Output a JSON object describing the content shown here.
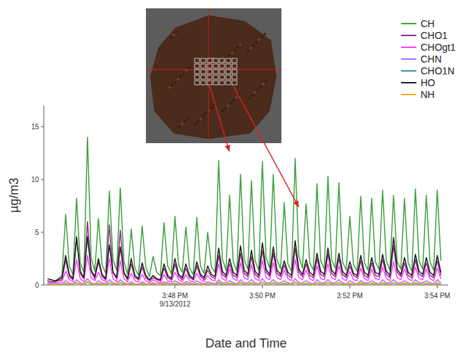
{
  "chart_data": {
    "type": "line",
    "x_label": "Date and Time",
    "y_label": "µg/m3",
    "grid": false,
    "legend": "top right",
    "xlim": [
      "2012-09-13T15:45:00",
      "2012-09-13T15:54:15"
    ],
    "xticks": [
      {
        "value": "2012-09-13T15:48:00",
        "label": "3:48 PM\n9/13/2012"
      },
      {
        "value": "2012-09-13T15:50:00",
        "label": "3:50 PM"
      },
      {
        "value": "2012-09-13T15:52:00",
        "label": "3:52 PM"
      },
      {
        "value": "2012-09-13T15:54:00",
        "label": "3:54 PM"
      }
    ],
    "ylim": [
      0,
      17
    ],
    "yticks": [
      0,
      5,
      10,
      15
    ],
    "x": [
      "2012-09-13T15:45:05",
      "2012-09-13T15:45:10",
      "2012-09-13T15:45:15",
      "2012-09-13T15:45:20",
      "2012-09-13T15:45:25",
      "2012-09-13T15:45:30",
      "2012-09-13T15:45:35",
      "2012-09-13T15:45:40",
      "2012-09-13T15:45:45",
      "2012-09-13T15:45:50",
      "2012-09-13T15:45:55",
      "2012-09-13T15:46:00",
      "2012-09-13T15:46:05",
      "2012-09-13T15:46:10",
      "2012-09-13T15:46:15",
      "2012-09-13T15:46:20",
      "2012-09-13T15:46:25",
      "2012-09-13T15:46:30",
      "2012-09-13T15:46:35",
      "2012-09-13T15:46:40",
      "2012-09-13T15:46:45",
      "2012-09-13T15:46:50",
      "2012-09-13T15:46:55",
      "2012-09-13T15:47:00",
      "2012-09-13T15:47:05",
      "2012-09-13T15:47:10",
      "2012-09-13T15:47:15",
      "2012-09-13T15:47:20",
      "2012-09-13T15:47:25",
      "2012-09-13T15:47:30",
      "2012-09-13T15:47:35",
      "2012-09-13T15:47:40",
      "2012-09-13T15:47:45",
      "2012-09-13T15:47:50",
      "2012-09-13T15:47:55",
      "2012-09-13T15:48:00",
      "2012-09-13T15:48:05",
      "2012-09-13T15:48:10",
      "2012-09-13T15:48:15",
      "2012-09-13T15:48:20",
      "2012-09-13T15:48:25",
      "2012-09-13T15:48:30",
      "2012-09-13T15:48:35",
      "2012-09-13T15:48:40",
      "2012-09-13T15:48:45",
      "2012-09-13T15:48:50",
      "2012-09-13T15:48:55",
      "2012-09-13T15:49:00",
      "2012-09-13T15:49:05",
      "2012-09-13T15:49:10",
      "2012-09-13T15:49:15",
      "2012-09-13T15:49:20",
      "2012-09-13T15:49:25",
      "2012-09-13T15:49:30",
      "2012-09-13T15:49:35",
      "2012-09-13T15:49:40",
      "2012-09-13T15:49:45",
      "2012-09-13T15:49:50",
      "2012-09-13T15:49:55",
      "2012-09-13T15:50:00",
      "2012-09-13T15:50:05",
      "2012-09-13T15:50:10",
      "2012-09-13T15:50:15",
      "2012-09-13T15:50:20",
      "2012-09-13T15:50:25",
      "2012-09-13T15:50:30",
      "2012-09-13T15:50:35",
      "2012-09-13T15:50:40",
      "2012-09-13T15:50:45",
      "2012-09-13T15:50:50",
      "2012-09-13T15:50:55",
      "2012-09-13T15:51:00",
      "2012-09-13T15:51:05",
      "2012-09-13T15:51:10",
      "2012-09-13T15:51:15",
      "2012-09-13T15:51:20",
      "2012-09-13T15:51:25",
      "2012-09-13T15:51:30",
      "2012-09-13T15:51:35",
      "2012-09-13T15:51:40",
      "2012-09-13T15:51:45",
      "2012-09-13T15:51:50",
      "2012-09-13T15:51:55",
      "2012-09-13T15:52:00",
      "2012-09-13T15:52:05",
      "2012-09-13T15:52:10",
      "2012-09-13T15:52:15",
      "2012-09-13T15:52:20",
      "2012-09-13T15:52:25",
      "2012-09-13T15:52:30",
      "2012-09-13T15:52:35",
      "2012-09-13T15:52:40",
      "2012-09-13T15:52:45",
      "2012-09-13T15:52:50",
      "2012-09-13T15:52:55",
      "2012-09-13T15:53:00",
      "2012-09-13T15:53:05",
      "2012-09-13T15:53:10",
      "2012-09-13T15:53:15",
      "2012-09-13T15:53:20",
      "2012-09-13T15:53:25",
      "2012-09-13T15:53:30",
      "2012-09-13T15:53:35",
      "2012-09-13T15:53:40",
      "2012-09-13T15:53:45",
      "2012-09-13T15:53:50",
      "2012-09-13T15:53:55",
      "2012-09-13T15:54:00",
      "2012-09-13T15:54:05"
    ],
    "series": [
      {
        "name": "CH",
        "color": "#3da13d",
        "values": [
          0.4,
          0.3,
          0.3,
          0.6,
          0.9,
          6.7,
          1.8,
          1.0,
          8.2,
          2.1,
          1.2,
          14.0,
          2.6,
          1.3,
          6.3,
          1.9,
          1.1,
          8.9,
          2.4,
          1.4,
          9.2,
          2.2,
          1.0,
          5.3,
          1.6,
          0.9,
          5.6,
          1.7,
          0.8,
          2.7,
          1.2,
          0.9,
          5.9,
          1.8,
          1.1,
          6.5,
          1.9,
          1.2,
          5.5,
          1.6,
          1.0,
          6.4,
          1.8,
          1.1,
          5.0,
          1.7,
          1.2,
          11.8,
          2.5,
          1.4,
          8.5,
          2.2,
          1.3,
          10.5,
          2.4,
          1.5,
          9.9,
          2.3,
          1.4,
          11.7,
          2.6,
          1.6,
          10.5,
          2.4,
          1.5,
          7.8,
          2.0,
          1.3,
          12.0,
          2.7,
          1.6,
          7.7,
          2.1,
          1.4,
          9.6,
          2.3,
          1.5,
          10.3,
          2.4,
          1.6,
          9.7,
          2.2,
          1.4,
          6.5,
          1.9,
          1.3,
          8.4,
          2.1,
          1.4,
          8.2,
          2.2,
          1.5,
          9.0,
          2.3,
          1.4,
          8.5,
          2.2,
          1.5,
          8.2,
          2.1,
          1.3,
          9.1,
          2.3,
          1.5,
          8.5,
          2.2,
          1.4,
          9.0,
          2.3
        ]
      },
      {
        "name": "CHO1",
        "color": "#8e2a84",
        "values": [
          0.4,
          0.3,
          0.3,
          0.4,
          0.5,
          2.4,
          0.8,
          0.5,
          4.6,
          1.1,
          0.6,
          6.0,
          1.3,
          0.6,
          2.2,
          0.8,
          0.5,
          5.7,
          1.2,
          0.6,
          5.2,
          1.1,
          0.5,
          2.0,
          0.7,
          0.5,
          1.7,
          0.7,
          0.4,
          0.7,
          0.5,
          0.4,
          1.6,
          0.7,
          0.5,
          2.0,
          0.8,
          0.5,
          1.6,
          0.7,
          0.5,
          1.8,
          0.8,
          0.5,
          1.4,
          0.8,
          0.6,
          2.8,
          1.0,
          0.7,
          2.0,
          0.9,
          0.7,
          3.0,
          1.1,
          0.8,
          2.7,
          1.0,
          0.7,
          3.3,
          1.2,
          0.8,
          3.0,
          1.1,
          0.8,
          1.9,
          0.9,
          0.7,
          3.5,
          1.2,
          0.8,
          2.0,
          0.9,
          0.7,
          2.5,
          1.0,
          0.8,
          2.9,
          1.1,
          0.8,
          2.5,
          1.0,
          0.7,
          1.8,
          0.9,
          0.7,
          2.3,
          0.9,
          0.7,
          2.1,
          0.9,
          0.8,
          2.4,
          1.0,
          0.7,
          3.7,
          1.2,
          0.8,
          2.1,
          0.9,
          0.7,
          2.4,
          1.0,
          0.8,
          2.1,
          0.9,
          0.7,
          2.3,
          0.9
        ]
      },
      {
        "name": "CHOgt1",
        "color": "#ff3cff",
        "values": [
          0.2,
          0.2,
          0.2,
          0.2,
          0.3,
          1.3,
          0.5,
          0.3,
          2.4,
          0.6,
          0.3,
          2.8,
          0.7,
          0.4,
          1.2,
          0.5,
          0.3,
          2.5,
          0.6,
          0.3,
          2.3,
          0.6,
          0.3,
          1.1,
          0.4,
          0.3,
          1.0,
          0.4,
          0.2,
          0.5,
          0.3,
          0.2,
          1.0,
          0.4,
          0.3,
          1.2,
          0.5,
          0.3,
          1.0,
          0.4,
          0.3,
          1.1,
          0.5,
          0.3,
          0.9,
          0.5,
          0.4,
          2.0,
          0.6,
          0.4,
          1.5,
          0.6,
          0.4,
          2.1,
          0.7,
          0.5,
          1.9,
          0.6,
          0.4,
          2.3,
          0.7,
          0.5,
          2.1,
          0.7,
          0.5,
          1.4,
          0.6,
          0.4,
          2.4,
          0.7,
          0.5,
          1.4,
          0.6,
          0.4,
          1.8,
          0.6,
          0.5,
          2.0,
          0.7,
          0.5,
          1.8,
          0.6,
          0.4,
          1.3,
          0.5,
          0.4,
          1.6,
          0.6,
          0.4,
          1.5,
          0.6,
          0.5,
          1.7,
          0.6,
          0.4,
          2.2,
          0.7,
          0.5,
          1.5,
          0.6,
          0.4,
          1.7,
          0.6,
          0.5,
          1.5,
          0.6,
          0.4,
          1.6,
          0.6
        ]
      },
      {
        "name": "CHN",
        "color": "#a66cff",
        "values": [
          0.1,
          0.1,
          0.1,
          0.1,
          0.1,
          0.4,
          0.2,
          0.1,
          0.5,
          0.2,
          0.1,
          0.6,
          0.2,
          0.1,
          0.4,
          0.2,
          0.1,
          0.5,
          0.2,
          0.1,
          0.5,
          0.2,
          0.1,
          0.3,
          0.1,
          0.1,
          0.3,
          0.1,
          0.1,
          0.2,
          0.1,
          0.1,
          0.3,
          0.2,
          0.1,
          0.4,
          0.2,
          0.1,
          0.3,
          0.2,
          0.1,
          0.4,
          0.2,
          0.1,
          0.3,
          0.2,
          0.1,
          0.5,
          0.2,
          0.2,
          0.4,
          0.2,
          0.1,
          0.5,
          0.2,
          0.2,
          0.5,
          0.2,
          0.1,
          0.6,
          0.2,
          0.2,
          0.5,
          0.2,
          0.2,
          0.4,
          0.2,
          0.1,
          0.6,
          0.2,
          0.2,
          0.4,
          0.2,
          0.1,
          0.5,
          0.2,
          0.2,
          0.5,
          0.2,
          0.2,
          0.5,
          0.2,
          0.1,
          0.4,
          0.2,
          0.1,
          0.4,
          0.2,
          0.2,
          0.4,
          0.2,
          0.1,
          0.5,
          0.2,
          0.2,
          0.5,
          0.2,
          0.2,
          0.4,
          0.2,
          0.1,
          0.5,
          0.2,
          0.2,
          0.4,
          0.2,
          0.1,
          0.5,
          0.2
        ]
      },
      {
        "name": "CHO1N",
        "color": "#3b8fa3",
        "values": [
          0.05,
          0.05,
          0.05,
          0.05,
          0.05,
          0.15,
          0.07,
          0.05,
          0.2,
          0.08,
          0.05,
          0.25,
          0.08,
          0.05,
          0.15,
          0.07,
          0.05,
          0.2,
          0.08,
          0.05,
          0.2,
          0.07,
          0.05,
          0.12,
          0.06,
          0.05,
          0.12,
          0.06,
          0.04,
          0.08,
          0.05,
          0.04,
          0.12,
          0.06,
          0.05,
          0.14,
          0.06,
          0.05,
          0.12,
          0.06,
          0.05,
          0.13,
          0.06,
          0.05,
          0.11,
          0.06,
          0.05,
          0.2,
          0.08,
          0.06,
          0.15,
          0.07,
          0.06,
          0.2,
          0.08,
          0.06,
          0.18,
          0.07,
          0.06,
          0.22,
          0.08,
          0.06,
          0.2,
          0.08,
          0.06,
          0.14,
          0.07,
          0.05,
          0.22,
          0.08,
          0.06,
          0.14,
          0.07,
          0.05,
          0.18,
          0.07,
          0.06,
          0.2,
          0.08,
          0.06,
          0.18,
          0.07,
          0.05,
          0.13,
          0.06,
          0.05,
          0.16,
          0.07,
          0.05,
          0.15,
          0.07,
          0.06,
          0.17,
          0.07,
          0.05,
          0.2,
          0.08,
          0.06,
          0.15,
          0.07,
          0.05,
          0.17,
          0.07,
          0.06,
          0.15,
          0.07,
          0.05,
          0.16,
          0.07
        ]
      },
      {
        "name": "HO",
        "color": "#1a1a1a",
        "values": [
          0.6,
          0.5,
          0.4,
          0.5,
          0.7,
          2.8,
          1.0,
          0.6,
          4.5,
          1.3,
          0.7,
          4.6,
          1.4,
          0.8,
          2.5,
          1.0,
          0.6,
          3.8,
          1.2,
          0.7,
          3.6,
          1.2,
          0.6,
          2.5,
          0.9,
          0.6,
          2.1,
          0.9,
          0.5,
          0.9,
          0.6,
          0.5,
          2.0,
          0.9,
          0.6,
          2.5,
          1.0,
          0.7,
          2.0,
          0.9,
          0.6,
          2.2,
          1.0,
          0.7,
          1.8,
          1.0,
          0.8,
          3.5,
          1.3,
          0.9,
          2.5,
          1.2,
          0.9,
          3.7,
          1.4,
          1.0,
          3.3,
          1.3,
          0.9,
          4.0,
          1.5,
          1.0,
          3.6,
          1.4,
          1.0,
          2.3,
          1.2,
          0.9,
          4.2,
          1.5,
          1.0,
          2.4,
          1.2,
          0.9,
          3.0,
          1.3,
          1.0,
          3.5,
          1.4,
          1.0,
          3.0,
          1.3,
          0.9,
          2.2,
          1.1,
          0.9,
          2.8,
          1.2,
          0.9,
          2.6,
          1.2,
          1.0,
          2.9,
          1.3,
          0.9,
          4.5,
          1.5,
          1.0,
          2.6,
          1.2,
          0.9,
          2.9,
          1.3,
          1.0,
          2.6,
          1.2,
          0.9,
          2.8,
          1.2
        ]
      },
      {
        "name": "NH",
        "color": "#ffab1a",
        "values": [
          0.06,
          0.05,
          0.05,
          0.06,
          0.08,
          0.2,
          0.1,
          0.06,
          0.25,
          0.1,
          0.07,
          0.3,
          0.11,
          0.07,
          0.18,
          0.09,
          0.06,
          0.25,
          0.1,
          0.07,
          0.24,
          0.1,
          0.06,
          0.16,
          0.08,
          0.06,
          0.15,
          0.08,
          0.05,
          0.1,
          0.07,
          0.05,
          0.16,
          0.08,
          0.06,
          0.18,
          0.09,
          0.06,
          0.15,
          0.08,
          0.06,
          0.17,
          0.08,
          0.06,
          0.14,
          0.08,
          0.07,
          0.28,
          0.11,
          0.08,
          0.2,
          0.1,
          0.08,
          0.26,
          0.11,
          0.08,
          0.24,
          0.1,
          0.07,
          0.28,
          0.11,
          0.08,
          0.26,
          0.11,
          0.08,
          0.19,
          0.09,
          0.07,
          0.29,
          0.11,
          0.08,
          0.19,
          0.09,
          0.07,
          0.23,
          0.1,
          0.08,
          0.25,
          0.1,
          0.08,
          0.23,
          0.1,
          0.07,
          0.17,
          0.09,
          0.07,
          0.21,
          0.1,
          0.07,
          0.2,
          0.1,
          0.08,
          0.22,
          0.1,
          0.07,
          0.24,
          0.1,
          0.08,
          0.2,
          0.09,
          0.07,
          0.22,
          0.1,
          0.08,
          0.2,
          0.09,
          0.07,
          0.21,
          0.1
        ]
      }
    ]
  }
}
